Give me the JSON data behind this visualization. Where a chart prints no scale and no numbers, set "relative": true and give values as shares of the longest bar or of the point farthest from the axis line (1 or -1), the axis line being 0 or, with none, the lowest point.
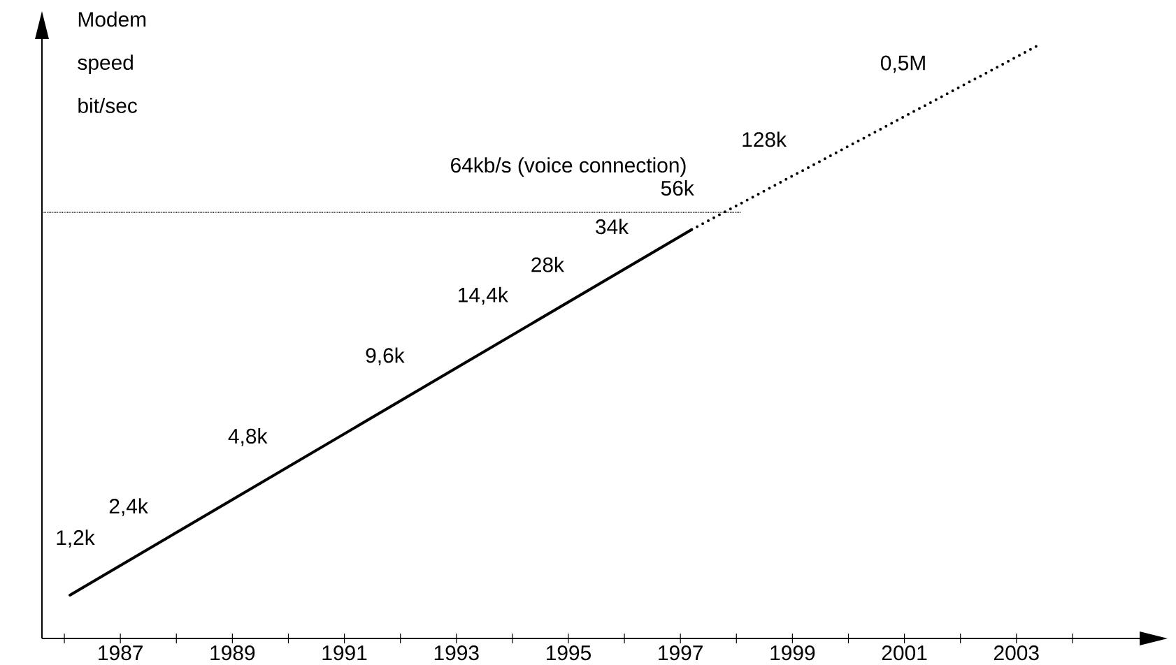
{
  "chart_data": {
    "type": "line",
    "relative": true,
    "ylabel": "Modem speed bit/sec",
    "xlim": [
      1985.6,
      2005.2
    ],
    "xticks": [
      {
        "value": 1986,
        "label": null
      },
      1987,
      {
        "value": 1988,
        "label": null
      },
      1989,
      {
        "value": 1990,
        "label": null
      },
      1991,
      {
        "value": 1992,
        "label": null
      },
      1993,
      {
        "value": 1994,
        "label": null
      },
      1995,
      {
        "value": 1996,
        "label": null
      },
      1997,
      {
        "value": 1998,
        "label": null
      },
      1999,
      {
        "value": 2000,
        "label": null
      },
      2001,
      {
        "value": 2002,
        "label": null
      },
      2003,
      {
        "value": 2004,
        "label": null
      }
    ],
    "grid": false,
    "marker": "none",
    "ref_lines": [
      {
        "axis": "y",
        "value": 0.718,
        "label": "64kb/s (voice connection)",
        "color": "#000000",
        "line_style": "dotted"
      }
    ],
    "series": [
      {
        "color": "#000000",
        "line_style": "solid",
        "x": [
          1986.1,
          1997.2
        ],
        "values": [
          0.073,
          0.689
        ]
      },
      {
        "color": "#000000",
        "line_style": "dotted",
        "x": [
          1997.2,
          2003.4
        ],
        "values": [
          0.689,
          1
        ]
      }
    ],
    "annotations": [
      {
        "text": "1,2k",
        "x": 1986.6,
        "y": 0.101
      },
      {
        "text": "2,4k",
        "x": 1987.55,
        "y": 0.154
      },
      {
        "text": "4,8k",
        "x": 1989.68,
        "y": 0.272
      },
      {
        "text": "9,6k",
        "x": 1992.13,
        "y": 0.408
      },
      {
        "text": "14,4k",
        "x": 1993.98,
        "y": 0.51
      },
      {
        "text": "28k",
        "x": 1994.98,
        "y": 0.565
      },
      {
        "text": "34k",
        "x": 1996.13,
        "y": 0.629
      },
      {
        "text": "56k",
        "x": 1997.3,
        "y": 0.694
      },
      {
        "text": "128k",
        "x": 1998.95,
        "y": 0.776
      },
      {
        "text": "0,5M",
        "x": 2001.45,
        "y": 0.901
      }
    ]
  }
}
